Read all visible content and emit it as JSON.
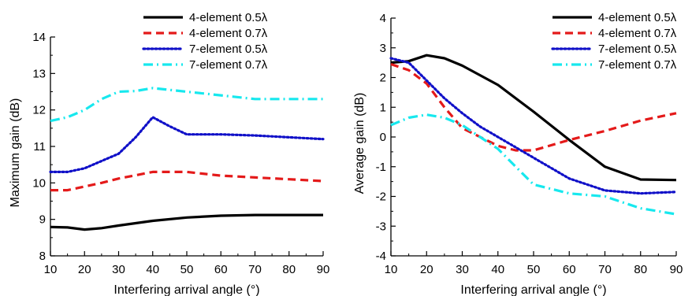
{
  "chart_data": [
    {
      "type": "line",
      "xlabel": "Interfering arrival angle (°)",
      "ylabel": "Maximum gain (dB)",
      "xlim": [
        10,
        90
      ],
      "ylim": [
        8,
        14
      ],
      "xticks": [
        10,
        20,
        30,
        40,
        50,
        60,
        70,
        80,
        90
      ],
      "yticks": [
        8,
        9,
        10,
        11,
        12,
        13,
        14
      ],
      "grid": false,
      "legend_position": "top-right",
      "series": [
        {
          "name": "4-element 0.5λ",
          "color": "#000000",
          "style": "solid",
          "x": [
            10,
            15,
            20,
            25,
            30,
            40,
            50,
            60,
            70,
            80,
            90
          ],
          "y": [
            8.79,
            8.78,
            8.72,
            8.76,
            8.83,
            8.96,
            9.05,
            9.1,
            9.12,
            9.12,
            9.12
          ]
        },
        {
          "name": "4-element 0.7λ",
          "color": "#e41a1a",
          "style": "dash",
          "x": [
            10,
            15,
            20,
            25,
            30,
            40,
            50,
            60,
            70,
            80,
            90
          ],
          "y": [
            9.8,
            9.8,
            9.9,
            10.0,
            10.12,
            10.3,
            10.3,
            10.2,
            10.15,
            10.1,
            10.05
          ]
        },
        {
          "name": "7-element 0.5λ",
          "color": "#1010c8",
          "style": "dot",
          "x": [
            10,
            15,
            20,
            25,
            30,
            35,
            40,
            45,
            50,
            60,
            70,
            80,
            90
          ],
          "y": [
            10.3,
            10.3,
            10.4,
            10.6,
            10.8,
            11.25,
            11.8,
            11.55,
            11.33,
            11.33,
            11.3,
            11.25,
            11.2
          ]
        },
        {
          "name": "7-element 0.7λ",
          "color": "#17e8ee",
          "style": "dashdot",
          "x": [
            10,
            15,
            20,
            25,
            30,
            35,
            40,
            45,
            50,
            60,
            70,
            80,
            90
          ],
          "y": [
            11.7,
            11.8,
            12.0,
            12.3,
            12.5,
            12.52,
            12.6,
            12.55,
            12.5,
            12.4,
            12.3,
            12.3,
            12.3
          ]
        }
      ]
    },
    {
      "type": "line",
      "xlabel": "Interfering arrival angle (°)",
      "ylabel": "Average gain (dB)",
      "xlim": [
        10,
        90
      ],
      "ylim": [
        -4,
        4
      ],
      "xticks": [
        10,
        20,
        30,
        40,
        50,
        60,
        70,
        80,
        90
      ],
      "yticks": [
        -4,
        -3,
        -2,
        -1,
        0,
        1,
        2,
        3,
        4
      ],
      "grid": false,
      "legend_position": "top-right",
      "series": [
        {
          "name": "4-element 0.5λ",
          "color": "#000000",
          "style": "solid",
          "x": [
            10,
            15,
            20,
            25,
            30,
            40,
            50,
            60,
            70,
            80,
            90
          ],
          "y": [
            2.5,
            2.55,
            2.75,
            2.65,
            2.4,
            1.75,
            0.85,
            -0.1,
            -1.0,
            -1.43,
            -1.45
          ]
        },
        {
          "name": "4-element 0.7λ",
          "color": "#e41a1a",
          "style": "dash",
          "x": [
            10,
            15,
            20,
            25,
            30,
            35,
            40,
            45,
            50,
            60,
            70,
            80,
            90
          ],
          "y": [
            2.45,
            2.25,
            1.8,
            1.0,
            0.3,
            0.0,
            -0.3,
            -0.45,
            -0.45,
            -0.1,
            0.2,
            0.55,
            0.8
          ]
        },
        {
          "name": "7-element 0.5λ",
          "color": "#1010c8",
          "style": "dot",
          "x": [
            10,
            15,
            20,
            25,
            30,
            35,
            40,
            45,
            50,
            60,
            70,
            80,
            90
          ],
          "y": [
            2.65,
            2.5,
            1.9,
            1.3,
            0.8,
            0.35,
            0.0,
            -0.35,
            -0.7,
            -1.4,
            -1.8,
            -1.9,
            -1.85
          ]
        },
        {
          "name": "7-element 0.7λ",
          "color": "#17e8ee",
          "style": "dashdot",
          "x": [
            10,
            15,
            20,
            25,
            30,
            35,
            40,
            45,
            50,
            60,
            70,
            80,
            90
          ],
          "y": [
            0.4,
            0.65,
            0.75,
            0.65,
            0.4,
            0.0,
            -0.4,
            -1.0,
            -1.6,
            -1.9,
            -2.0,
            -2.4,
            -2.6
          ]
        }
      ]
    }
  ]
}
